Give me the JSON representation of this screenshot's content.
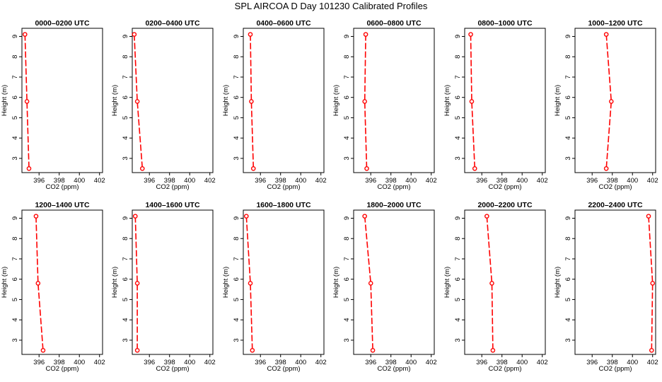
{
  "title": "SPL AIRCOA D  Day 101230  Calibrated Profiles",
  "colors": {
    "profile": "#ff0000",
    "axes": "#000000"
  },
  "chart_data": [
    {
      "type": "line",
      "title": "0000–0200 UTC",
      "xlabel": "CO2 (ppm)",
      "ylabel": "Height (m)",
      "xlim": [
        394.3,
        402.3
      ],
      "ylim": [
        2.3,
        9.4
      ],
      "xticks": [
        "396",
        "398",
        "400",
        "402"
      ],
      "yticks": [
        "3",
        "4",
        "5",
        "6",
        "7",
        "8",
        "9"
      ],
      "x": [
        394.6,
        394.8,
        395.0
      ],
      "y": [
        9.1,
        5.8,
        2.5
      ]
    },
    {
      "type": "line",
      "title": "0200–0400 UTC",
      "xlabel": "CO2 (ppm)",
      "ylabel": "Height (m)",
      "xlim": [
        394.3,
        402.3
      ],
      "ylim": [
        2.3,
        9.4
      ],
      "xticks": [
        "396",
        "398",
        "400",
        "402"
      ],
      "yticks": [
        "3",
        "4",
        "5",
        "6",
        "7",
        "8",
        "9"
      ],
      "x": [
        394.5,
        394.8,
        395.3
      ],
      "y": [
        9.1,
        5.8,
        2.5
      ]
    },
    {
      "type": "line",
      "title": "0400–0600 UTC",
      "xlabel": "CO2 (ppm)",
      "ylabel": "Height (m)",
      "xlim": [
        394.3,
        402.3
      ],
      "ylim": [
        2.3,
        9.4
      ],
      "xticks": [
        "396",
        "398",
        "400",
        "402"
      ],
      "yticks": [
        "3",
        "4",
        "5",
        "6",
        "7",
        "8",
        "9"
      ],
      "x": [
        395.0,
        395.1,
        395.3
      ],
      "y": [
        9.1,
        5.8,
        2.5
      ]
    },
    {
      "type": "line",
      "title": "0600–0800 UTC",
      "xlabel": "CO2 (ppm)",
      "ylabel": "Height (m)",
      "xlim": [
        394.3,
        402.3
      ],
      "ylim": [
        2.3,
        9.4
      ],
      "xticks": [
        "396",
        "398",
        "400",
        "402"
      ],
      "yticks": [
        "3",
        "4",
        "5",
        "6",
        "7",
        "8",
        "9"
      ],
      "x": [
        395.5,
        395.4,
        395.6
      ],
      "y": [
        9.1,
        5.8,
        2.5
      ]
    },
    {
      "type": "line",
      "title": "0800–1000 UTC",
      "xlabel": "CO2 (ppm)",
      "ylabel": "Height (m)",
      "xlim": [
        394.3,
        402.3
      ],
      "ylim": [
        2.3,
        9.4
      ],
      "xticks": [
        "396",
        "398",
        "400",
        "402"
      ],
      "yticks": [
        "3",
        "4",
        "5",
        "6",
        "7",
        "8",
        "9"
      ],
      "x": [
        394.9,
        395.0,
        395.3
      ],
      "y": [
        9.1,
        5.8,
        2.5
      ]
    },
    {
      "type": "line",
      "title": "1000–1200 UTC",
      "xlabel": "CO2 (ppm)",
      "ylabel": "Height (m)",
      "xlim": [
        394.3,
        402.3
      ],
      "ylim": [
        2.3,
        9.4
      ],
      "xticks": [
        "396",
        "398",
        "400",
        "402"
      ],
      "yticks": [
        "3",
        "4",
        "5",
        "6",
        "7",
        "8",
        "9"
      ],
      "x": [
        397.4,
        397.9,
        397.4
      ],
      "y": [
        9.1,
        5.8,
        2.5
      ]
    },
    {
      "type": "line",
      "title": "1200–1400 UTC",
      "xlabel": "CO2 (ppm)",
      "ylabel": "Height (m)",
      "xlim": [
        394.3,
        402.3
      ],
      "ylim": [
        2.3,
        9.4
      ],
      "xticks": [
        "396",
        "398",
        "400",
        "402"
      ],
      "yticks": [
        "3",
        "4",
        "5",
        "6",
        "7",
        "8",
        "9"
      ],
      "x": [
        395.7,
        395.9,
        396.4
      ],
      "y": [
        9.1,
        5.8,
        2.5
      ]
    },
    {
      "type": "line",
      "title": "1400–1600 UTC",
      "xlabel": "CO2 (ppm)",
      "ylabel": "Height (m)",
      "xlim": [
        394.3,
        402.3
      ],
      "ylim": [
        2.3,
        9.4
      ],
      "xticks": [
        "396",
        "398",
        "400",
        "402"
      ],
      "yticks": [
        "3",
        "4",
        "5",
        "6",
        "7",
        "8",
        "9"
      ],
      "x": [
        394.6,
        394.8,
        394.8
      ],
      "y": [
        9.1,
        5.8,
        2.5
      ]
    },
    {
      "type": "line",
      "title": "1600–1800 UTC",
      "xlabel": "CO2 (ppm)",
      "ylabel": "Height (m)",
      "xlim": [
        394.3,
        402.3
      ],
      "ylim": [
        2.3,
        9.4
      ],
      "xticks": [
        "396",
        "398",
        "400",
        "402"
      ],
      "yticks": [
        "3",
        "4",
        "5",
        "6",
        "7",
        "8",
        "9"
      ],
      "x": [
        394.6,
        395.0,
        395.2
      ],
      "y": [
        9.1,
        5.8,
        2.5
      ]
    },
    {
      "type": "line",
      "title": "1800–2000 UTC",
      "xlabel": "CO2 (ppm)",
      "ylabel": "Height (m)",
      "xlim": [
        394.3,
        402.3
      ],
      "ylim": [
        2.3,
        9.4
      ],
      "xticks": [
        "396",
        "398",
        "400",
        "402"
      ],
      "yticks": [
        "3",
        "4",
        "5",
        "6",
        "7",
        "8",
        "9"
      ],
      "x": [
        395.4,
        396.0,
        396.2
      ],
      "y": [
        9.1,
        5.8,
        2.5
      ]
    },
    {
      "type": "line",
      "title": "2000–2200 UTC",
      "xlabel": "CO2 (ppm)",
      "ylabel": "Height (m)",
      "xlim": [
        394.3,
        402.3
      ],
      "ylim": [
        2.3,
        9.4
      ],
      "xticks": [
        "396",
        "398",
        "400",
        "402"
      ],
      "yticks": [
        "3",
        "4",
        "5",
        "6",
        "7",
        "8",
        "9"
      ],
      "x": [
        396.5,
        397.0,
        397.1
      ],
      "y": [
        9.1,
        5.8,
        2.5
      ]
    },
    {
      "type": "line",
      "title": "2200–2400 UTC",
      "xlabel": "CO2 (ppm)",
      "ylabel": "Height (m)",
      "xlim": [
        394.3,
        402.3
      ],
      "ylim": [
        2.3,
        9.4
      ],
      "xticks": [
        "396",
        "398",
        "400",
        "402"
      ],
      "yticks": [
        "3",
        "4",
        "5",
        "6",
        "7",
        "8",
        "9"
      ],
      "x": [
        401.6,
        402.0,
        401.9
      ],
      "y": [
        9.1,
        5.8,
        2.5
      ]
    }
  ]
}
